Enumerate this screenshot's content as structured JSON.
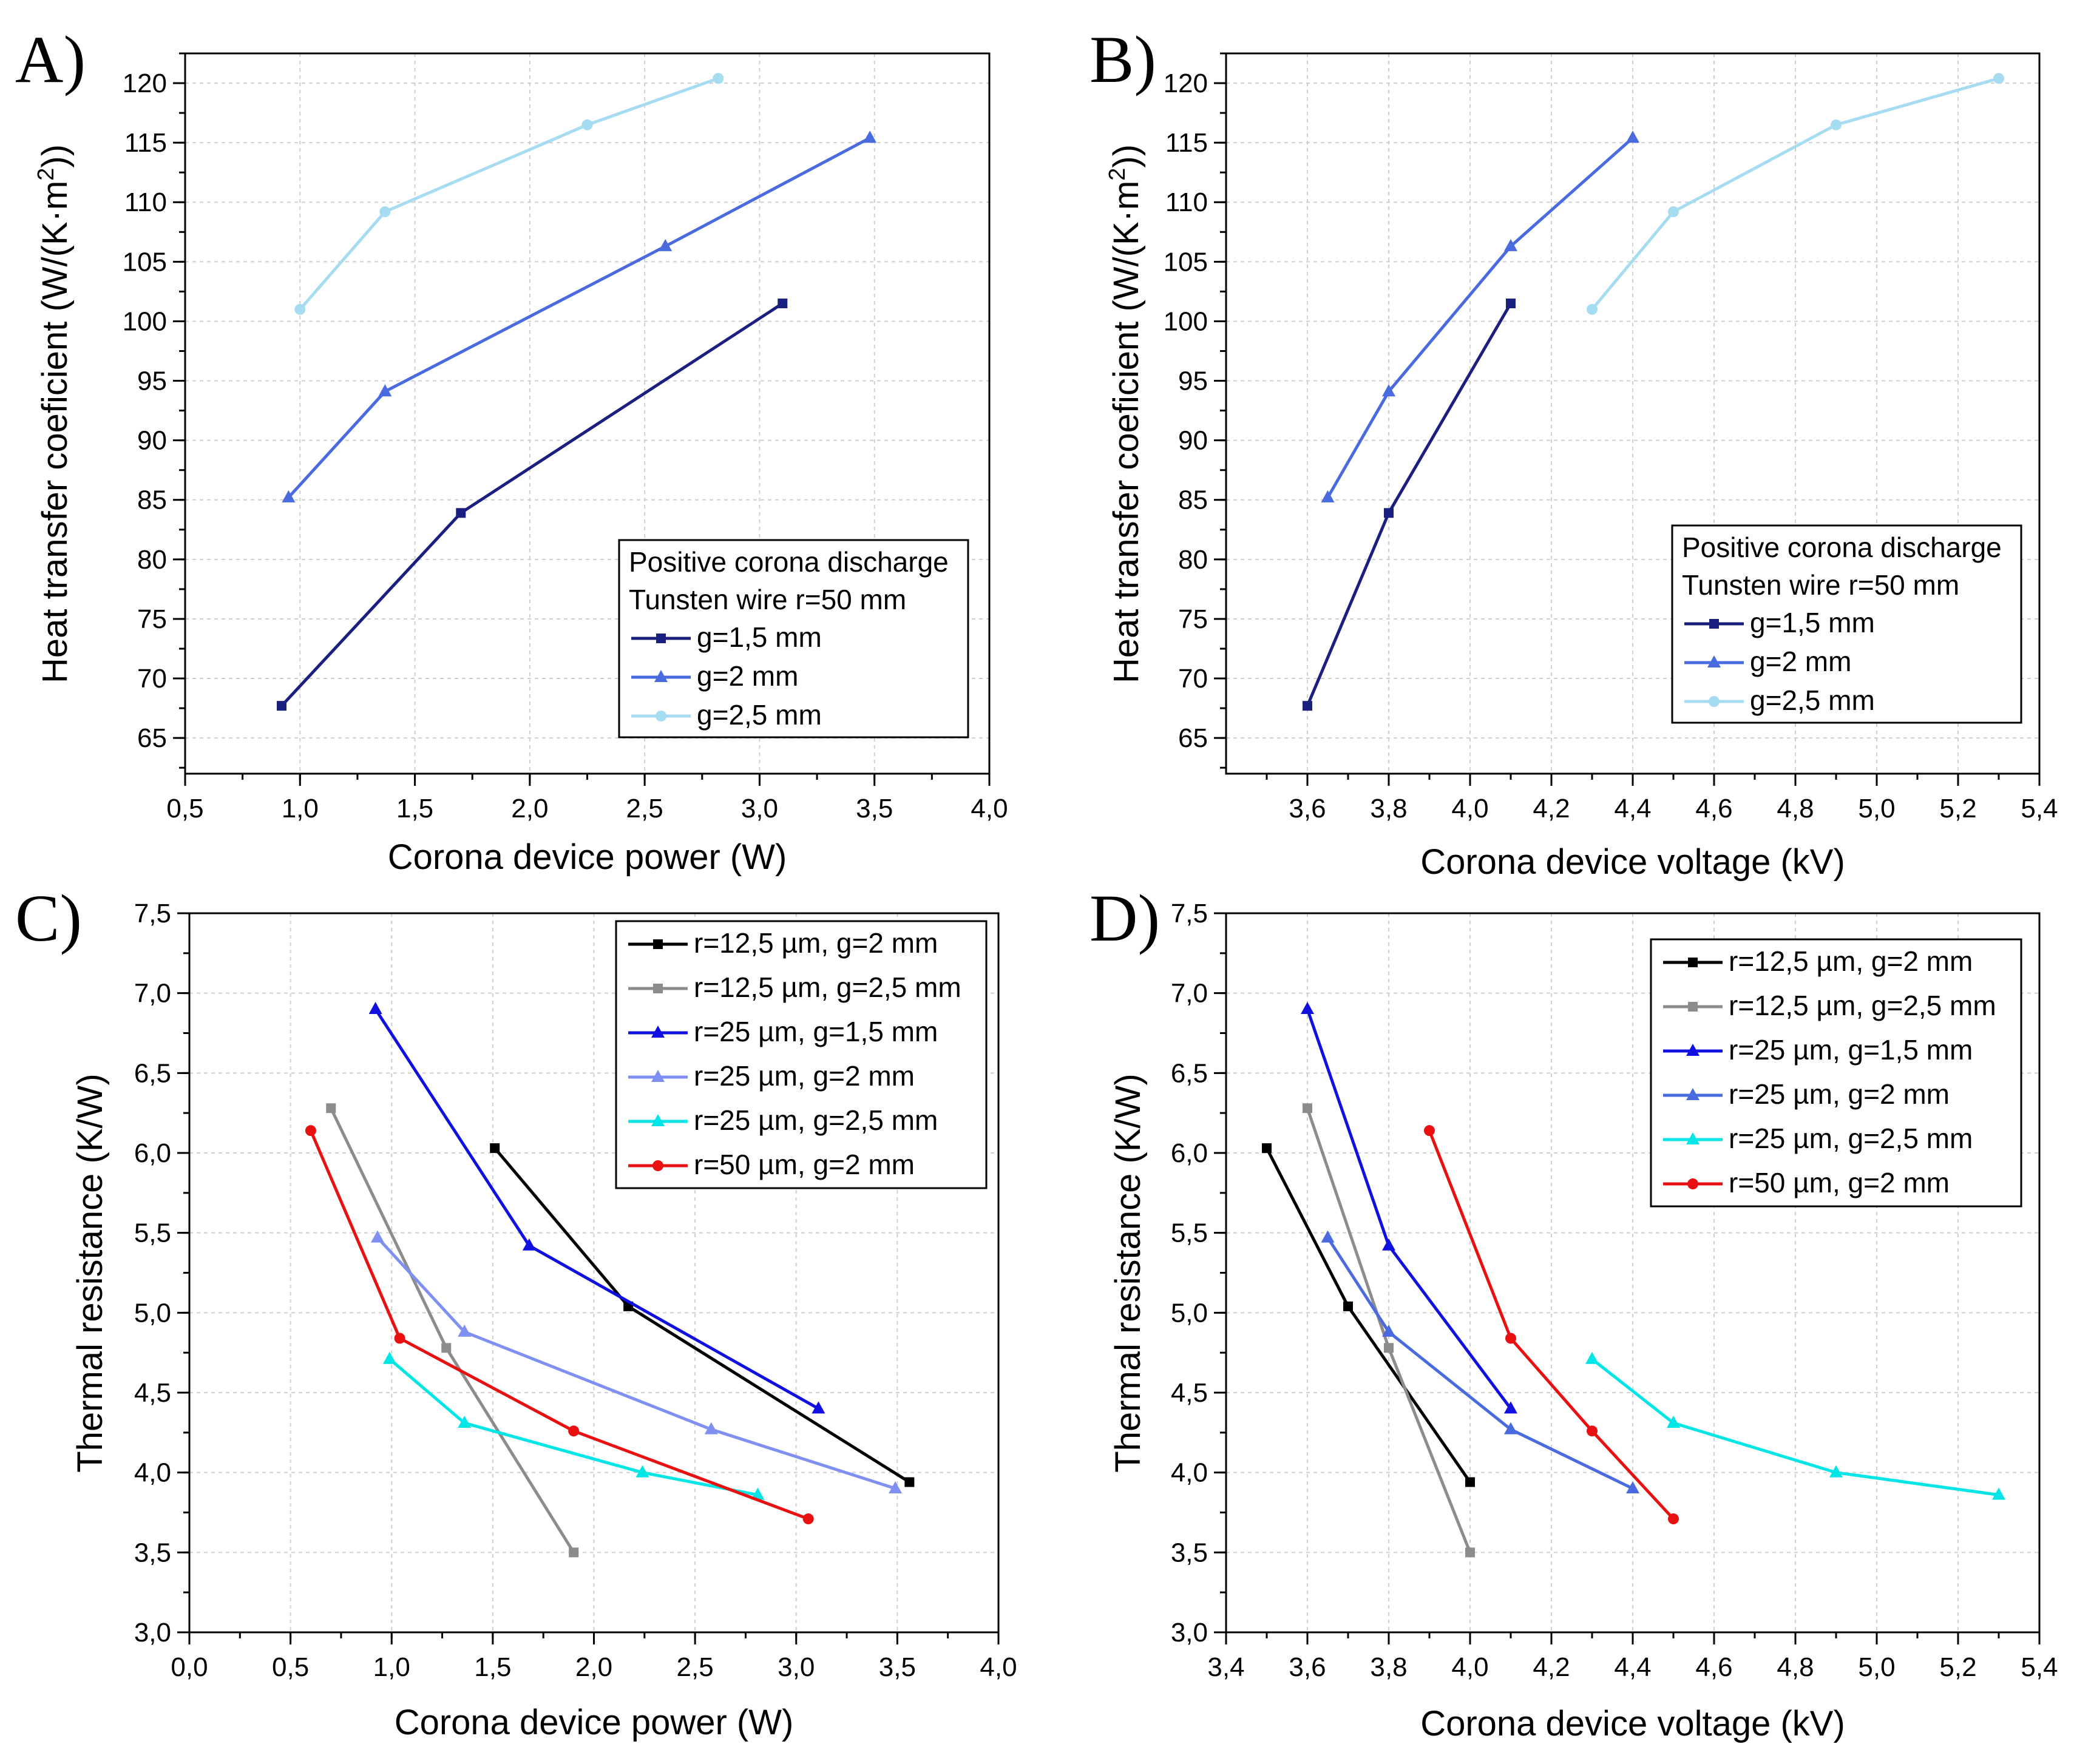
{
  "chart_data": [
    {
      "id": "A",
      "type": "line",
      "panel_label": "A)",
      "xlabel": "Corona device power (W)",
      "ylabel_main": "Heat transfer coeficient (W/(K·m",
      "ylabel_sup": "2",
      "ylabel_end": "))",
      "xlim": [
        0.5,
        4.0
      ],
      "ylim": [
        62,
        122.5
      ],
      "xticks": [
        "0,5",
        "1,0",
        "1,5",
        "2,0",
        "2,5",
        "3,0",
        "3,5",
        "4,0"
      ],
      "yticks": [
        "65",
        "70",
        "75",
        "80",
        "85",
        "90",
        "95",
        "100",
        "105",
        "110",
        "115",
        "120"
      ],
      "legend_title": [
        "Positive corona discharge",
        "Tunsten wire r=50 mm"
      ],
      "series": [
        {
          "name": "g=1,5 mm",
          "color": "#1a1f80",
          "marker": "square",
          "x": [
            0.92,
            1.7,
            3.1
          ],
          "y": [
            67.7,
            83.9,
            101.5
          ]
        },
        {
          "name": "g=2 mm",
          "color": "#4a6ae0",
          "marker": "triangle",
          "x": [
            0.95,
            1.37,
            2.59,
            3.48
          ],
          "y": [
            85.2,
            94.1,
            106.3,
            115.4
          ]
        },
        {
          "name": "g=2,5 mm",
          "color": "#a6dcf2",
          "marker": "circle",
          "x": [
            1.0,
            1.37,
            2.25,
            2.82
          ],
          "y": [
            101.0,
            109.2,
            116.5,
            120.4
          ]
        }
      ]
    },
    {
      "id": "B",
      "type": "line",
      "panel_label": "B)",
      "xlabel": "Corona device voltage (kV)",
      "ylabel_main": "Heat transfer coeficient (W/(K·m",
      "ylabel_sup": "2",
      "ylabel_end": "))",
      "xlim": [
        3.4,
        5.4
      ],
      "ylim": [
        62,
        122.5
      ],
      "xticks": [
        "3,6",
        "3,8",
        "4,0",
        "4,2",
        "4,4",
        "4,6",
        "4,8",
        "5,0",
        "5,2",
        "5,4"
      ],
      "yticks": [
        "65",
        "70",
        "75",
        "80",
        "85",
        "90",
        "95",
        "100",
        "105",
        "110",
        "115",
        "120"
      ],
      "legend_title": [
        "Positive corona discharge",
        "Tunsten wire r=50 mm"
      ],
      "series": [
        {
          "name": "g=1,5 mm",
          "color": "#1a1f80",
          "marker": "square",
          "x": [
            3.6,
            3.8,
            4.1
          ],
          "y": [
            67.7,
            83.9,
            101.5
          ]
        },
        {
          "name": "g=2 mm",
          "color": "#4a6ae0",
          "marker": "triangle",
          "x": [
            3.65,
            3.8,
            4.1,
            4.4
          ],
          "y": [
            85.2,
            94.1,
            106.3,
            115.4
          ]
        },
        {
          "name": "g=2,5 mm",
          "color": "#a6dcf2",
          "marker": "circle",
          "x": [
            4.3,
            4.5,
            4.9,
            5.3
          ],
          "y": [
            101.0,
            109.2,
            116.5,
            120.4
          ]
        }
      ]
    },
    {
      "id": "C",
      "type": "line",
      "panel_label": "C)",
      "xlabel": "Corona device power (W)",
      "ylabel_main": "Thermal resistance (K/W)",
      "ylabel_sup": "",
      "ylabel_end": "",
      "xlim": [
        0.0,
        4.0
      ],
      "ylim": [
        3.0,
        7.5
      ],
      "xticks": [
        "0,0",
        "0,5",
        "1,0",
        "1,5",
        "2,0",
        "2,5",
        "3,0",
        "3,5",
        "4,0"
      ],
      "yticks": [
        "3,0",
        "3,5",
        "4,0",
        "4,5",
        "5,0",
        "5,5",
        "6,0",
        "6,5",
        "7,0",
        "7,5"
      ],
      "legend_title": [],
      "series": [
        {
          "name": "r=12,5 µm, g=2 mm",
          "color": "#000000",
          "marker": "square",
          "x": [
            1.51,
            2.17,
            3.56
          ],
          "y": [
            6.03,
            5.04,
            3.94
          ]
        },
        {
          "name": "r=12,5 µm, g=2,5 mm",
          "color": "#8c8c8c",
          "marker": "square",
          "x": [
            0.7,
            1.27,
            1.9
          ],
          "y": [
            6.28,
            4.78,
            3.5
          ]
        },
        {
          "name": "r=25 µm, g=1,5 mm",
          "color": "#1010e0",
          "marker": "triangle",
          "x": [
            0.92,
            1.68,
            3.11
          ],
          "y": [
            6.9,
            5.42,
            4.4
          ]
        },
        {
          "name": "r=25 µm, g=2 mm",
          "color": "#7f8ff2",
          "marker": "triangle",
          "x": [
            0.93,
            1.36,
            2.58,
            3.49
          ],
          "y": [
            5.47,
            4.88,
            4.27,
            3.9
          ]
        },
        {
          "name": "r=25 µm, g=2,5 mm",
          "color": "#00e6e6",
          "marker": "triangle",
          "x": [
            0.99,
            1.36,
            2.24,
            2.81
          ],
          "y": [
            4.71,
            4.31,
            4.0,
            3.86
          ]
        },
        {
          "name": "r=50 µm, g=2 mm",
          "color": "#e81010",
          "marker": "circle",
          "x": [
            0.6,
            1.04,
            1.9,
            3.06
          ],
          "y": [
            6.14,
            4.84,
            4.26,
            3.71
          ]
        }
      ]
    },
    {
      "id": "D",
      "type": "line",
      "panel_label": "D)",
      "xlabel": "Corona device voltage (kV)",
      "ylabel_main": "Thermal resistance (K/W)",
      "ylabel_sup": "",
      "ylabel_end": "",
      "xlim": [
        3.4,
        5.4
      ],
      "ylim": [
        3.0,
        7.5
      ],
      "xticks": [
        "3,4",
        "3,6",
        "3,8",
        "4,0",
        "4,2",
        "4,4",
        "4,6",
        "4,8",
        "5,0",
        "5,2",
        "5,4"
      ],
      "yticks": [
        "3,0",
        "3,5",
        "4,0",
        "4,5",
        "5,0",
        "5,5",
        "6,0",
        "6,5",
        "7,0",
        "7,5"
      ],
      "legend_title": [],
      "series": [
        {
          "name": "r=12,5 µm, g=2 mm",
          "color": "#000000",
          "marker": "square",
          "x": [
            3.5,
            3.7,
            4.0
          ],
          "y": [
            6.03,
            5.04,
            3.94
          ]
        },
        {
          "name": "r=12,5 µm, g=2,5 mm",
          "color": "#8c8c8c",
          "marker": "square",
          "x": [
            3.6,
            3.8,
            4.0
          ],
          "y": [
            6.28,
            4.78,
            3.5
          ]
        },
        {
          "name": "r=25 µm, g=1,5 mm",
          "color": "#1010e0",
          "marker": "triangle",
          "x": [
            3.6,
            3.8,
            4.1
          ],
          "y": [
            6.9,
            5.42,
            4.4
          ]
        },
        {
          "name": "r=25 µm, g=2 mm",
          "color": "#4a6ae0",
          "marker": "triangle",
          "x": [
            3.65,
            3.8,
            4.1,
            4.4
          ],
          "y": [
            5.47,
            4.88,
            4.27,
            3.9
          ]
        },
        {
          "name": "r=25 µm, g=2,5 mm",
          "color": "#00e6e6",
          "marker": "triangle",
          "x": [
            4.3,
            4.5,
            4.9,
            5.3
          ],
          "y": [
            4.71,
            4.31,
            4.0,
            3.86
          ]
        },
        {
          "name": "r=50 µm, g=2 mm",
          "color": "#e81010",
          "marker": "circle",
          "x": [
            3.9,
            4.1,
            4.3,
            4.5
          ],
          "y": [
            6.14,
            4.84,
            4.26,
            3.71
          ]
        }
      ]
    }
  ]
}
